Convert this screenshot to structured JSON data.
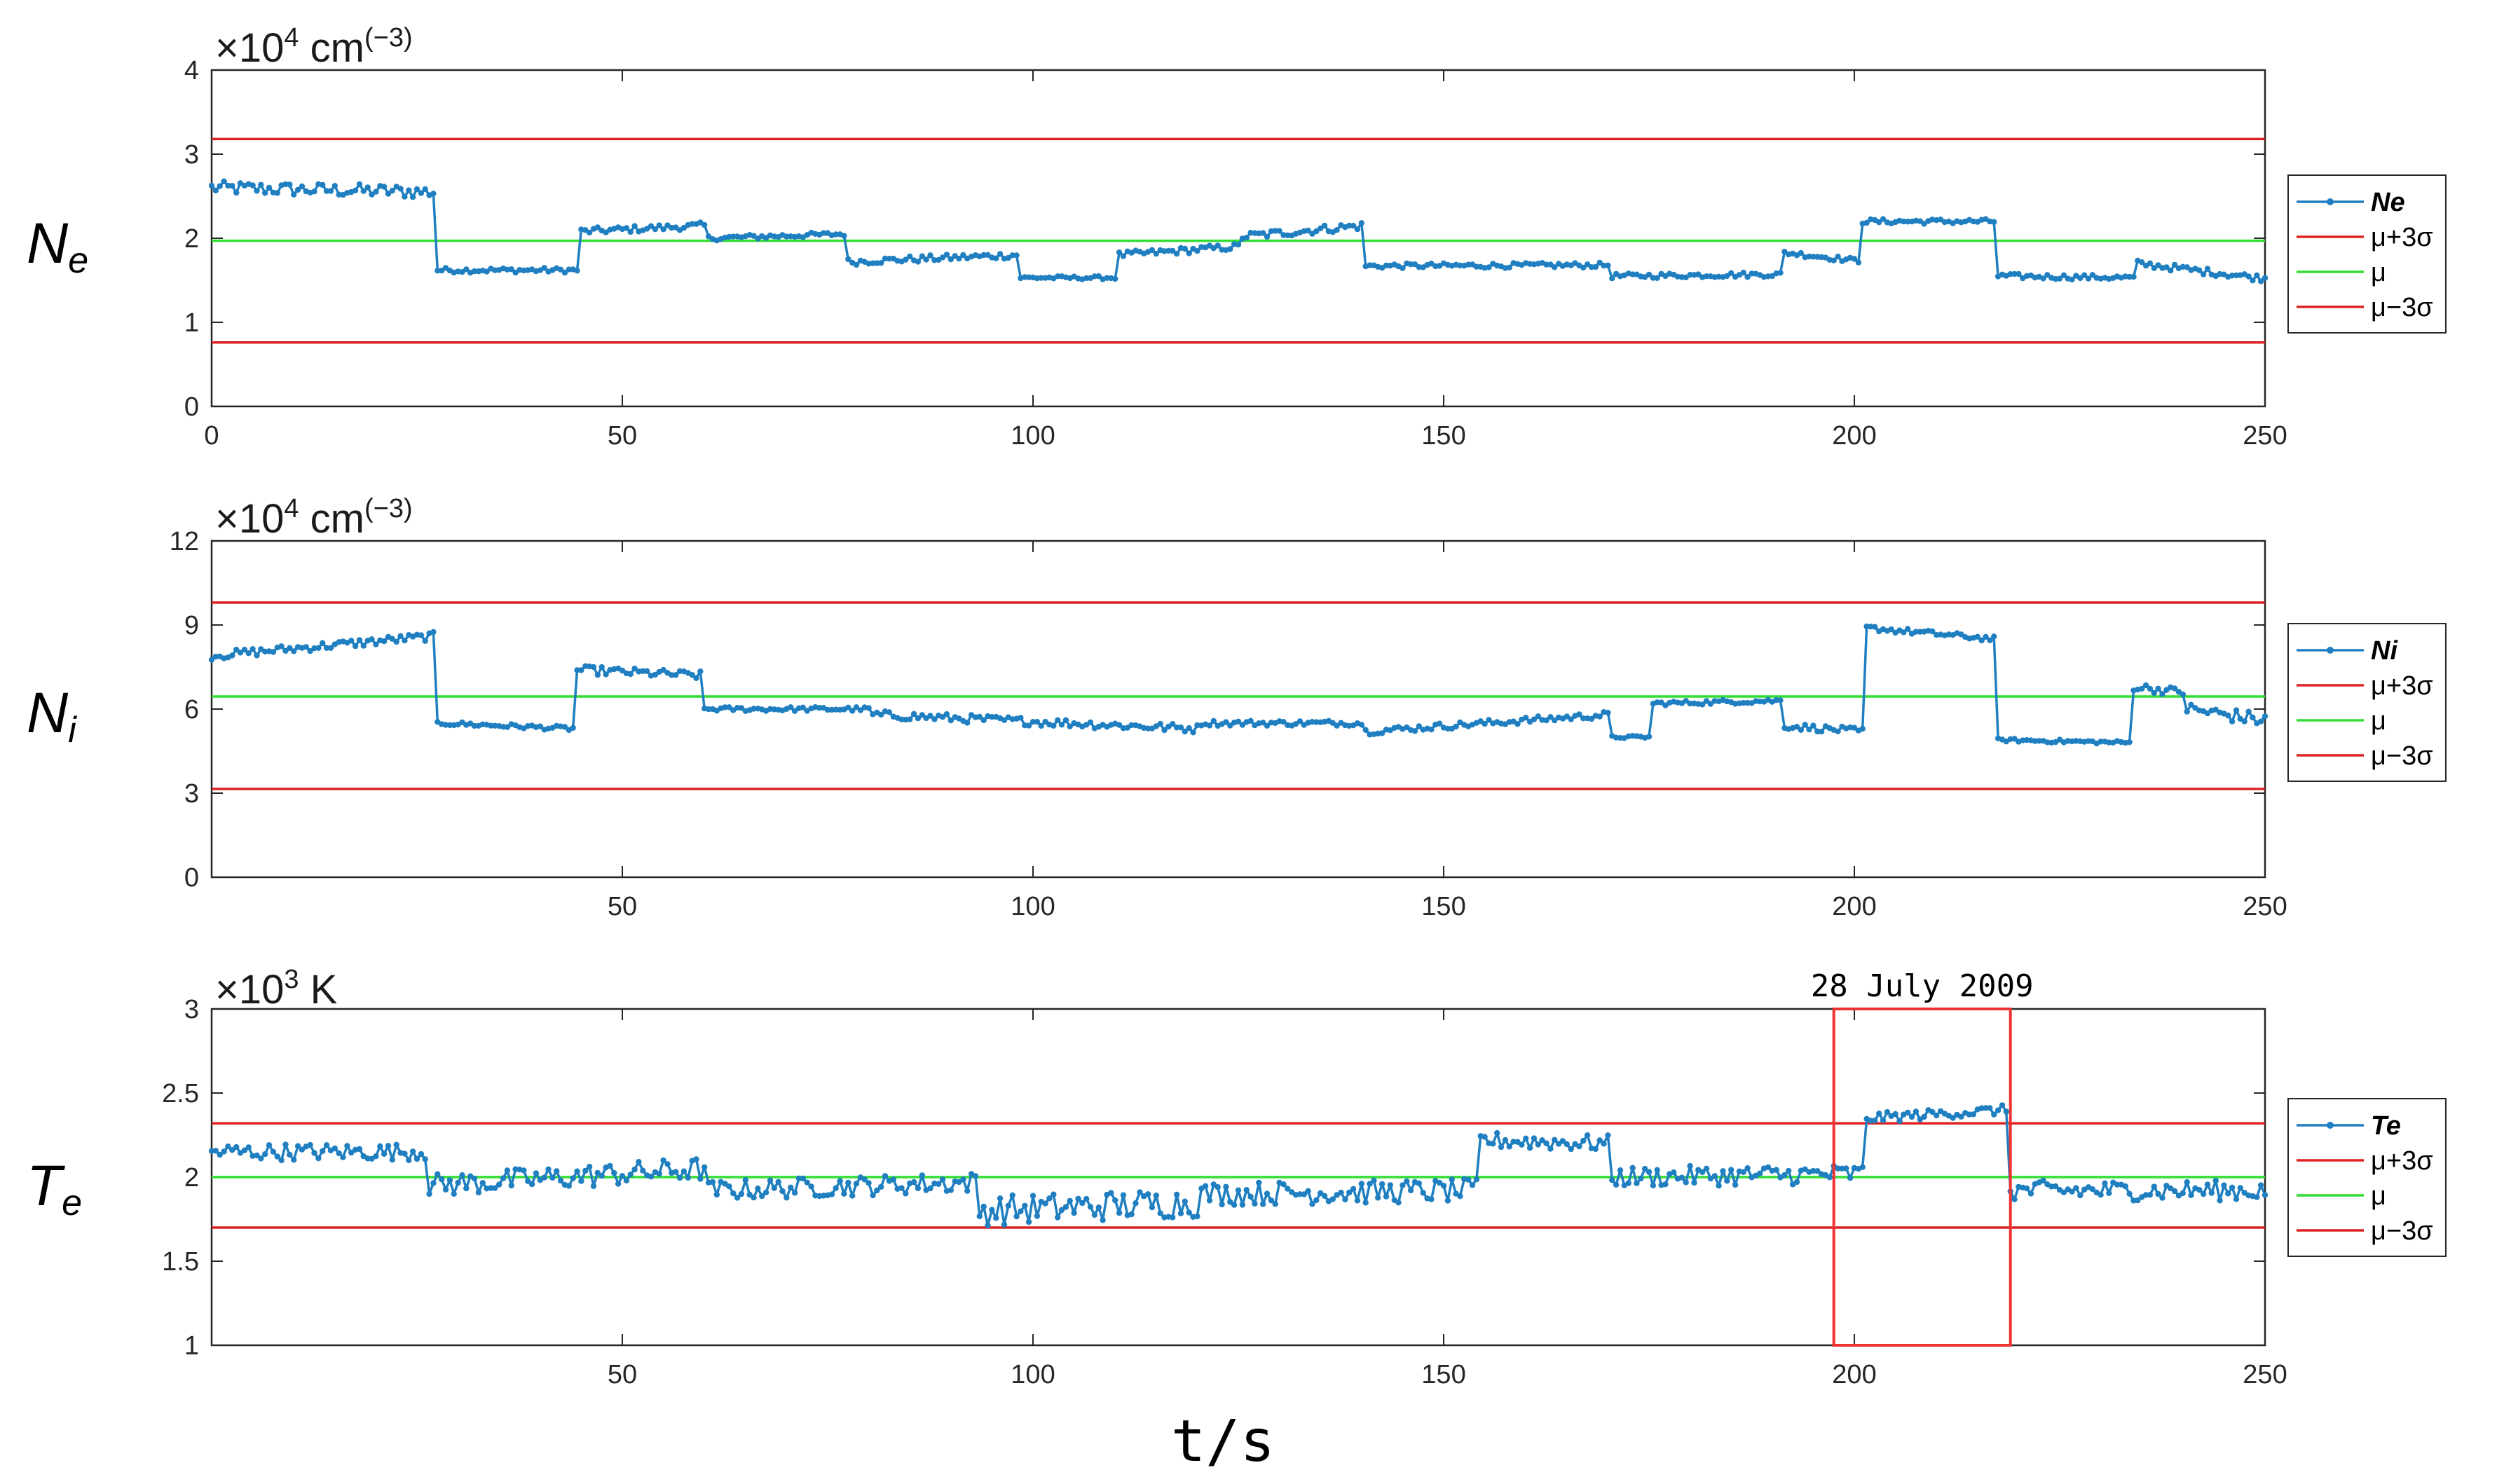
{
  "figure": {
    "xlabel": "t/s",
    "legend_mu_plus": "μ+3σ",
    "legend_mu": "μ",
    "legend_mu_minus": "μ−3σ"
  },
  "colors": {
    "series": "#1f7fc0",
    "mu_line": "#33dd33",
    "sigma_line": "#dd2222",
    "highlight": "#ee3333"
  },
  "chart_data": [
    {
      "type": "line",
      "ylabel": "N",
      "ylabel_sub": "e",
      "unit_prefix": "×10",
      "unit_exp": "4",
      "unit_tail": " cm",
      "unit_tail_exp": "(−3)",
      "legend_series": "Ne",
      "xlim": [
        0,
        250
      ],
      "ylim": [
        0,
        4
      ],
      "xticks": [
        0,
        50,
        100,
        150,
        200,
        250
      ],
      "xtick_labels": [
        "0",
        "50",
        "100",
        "150",
        "200",
        "250"
      ],
      "yticks": [
        0,
        1,
        2,
        3,
        4
      ],
      "ytick_labels": [
        "0",
        "1",
        "2",
        "3",
        "4"
      ],
      "mu": 1.97,
      "mu_plus_3sigma": 3.18,
      "mu_minus_3sigma": 0.76,
      "segments": [
        {
          "x0": 0,
          "x1": 27,
          "y0": 2.6,
          "y1": 2.55,
          "noise": 0.08
        },
        {
          "x0": 27.5,
          "x1": 44.5,
          "y0": 1.62,
          "y1": 1.62,
          "noise": 0.03
        },
        {
          "x0": 45,
          "x1": 60,
          "y0": 2.08,
          "y1": 2.15,
          "noise": 0.04
        },
        {
          "x0": 60.5,
          "x1": 77,
          "y0": 2.0,
          "y1": 2.05,
          "noise": 0.03
        },
        {
          "x0": 77.5,
          "x1": 98,
          "y0": 1.72,
          "y1": 1.8,
          "noise": 0.04
        },
        {
          "x0": 98.5,
          "x1": 110,
          "y0": 1.53,
          "y1": 1.53,
          "noise": 0.02
        },
        {
          "x0": 110.5,
          "x1": 125,
          "y0": 1.8,
          "y1": 1.9,
          "noise": 0.04
        },
        {
          "x0": 125.5,
          "x1": 140,
          "y0": 2.02,
          "y1": 2.15,
          "noise": 0.05
        },
        {
          "x0": 140.5,
          "x1": 170,
          "y0": 1.67,
          "y1": 1.68,
          "noise": 0.03
        },
        {
          "x0": 170.5,
          "x1": 191,
          "y0": 1.55,
          "y1": 1.57,
          "noise": 0.03
        },
        {
          "x0": 191.5,
          "x1": 200.5,
          "y0": 1.83,
          "y1": 1.73,
          "noise": 0.03
        },
        {
          "x0": 201,
          "x1": 217,
          "y0": 2.2,
          "y1": 2.2,
          "noise": 0.03
        },
        {
          "x0": 217.5,
          "x1": 234,
          "y0": 1.55,
          "y1": 1.53,
          "noise": 0.03
        },
        {
          "x0": 234.5,
          "x1": 250,
          "y0": 1.7,
          "y1": 1.52,
          "noise": 0.04
        }
      ]
    },
    {
      "type": "line",
      "ylabel": "N",
      "ylabel_sub": "i",
      "unit_prefix": "×10",
      "unit_exp": "4",
      "unit_tail": " cm",
      "unit_tail_exp": "(−3)",
      "legend_series": "Ni",
      "xlim": [
        0,
        250
      ],
      "ylim": [
        0,
        12
      ],
      "xticks": [
        50,
        100,
        150,
        200,
        250
      ],
      "xtick_labels": [
        "50",
        "100",
        "150",
        "200",
        "250"
      ],
      "yticks": [
        0,
        3,
        6,
        9,
        12
      ],
      "ytick_labels": [
        "0",
        "3",
        "6",
        "9",
        "12"
      ],
      "mu": 6.45,
      "mu_plus_3sigma": 9.8,
      "mu_minus_3sigma": 3.15,
      "segments": [
        {
          "x0": 0,
          "x1": 27,
          "y0": 7.9,
          "y1": 8.6,
          "noise": 0.15
        },
        {
          "x0": 27.5,
          "x1": 44,
          "y0": 5.5,
          "y1": 5.3,
          "noise": 0.08
        },
        {
          "x0": 44.5,
          "x1": 59.5,
          "y0": 7.4,
          "y1": 7.2,
          "noise": 0.15
        },
        {
          "x0": 60,
          "x1": 80,
          "y0": 6.0,
          "y1": 6.0,
          "noise": 0.08
        },
        {
          "x0": 80.5,
          "x1": 120,
          "y0": 5.8,
          "y1": 5.3,
          "noise": 0.15
        },
        {
          "x0": 120.5,
          "x1": 140,
          "y0": 5.5,
          "y1": 5.5,
          "noise": 0.1
        },
        {
          "x0": 140.5,
          "x1": 170,
          "y0": 5.2,
          "y1": 5.8,
          "noise": 0.12
        },
        {
          "x0": 170.5,
          "x1": 175,
          "y0": 5.0,
          "y1": 5.0,
          "noise": 0.05
        },
        {
          "x0": 175.5,
          "x1": 191,
          "y0": 6.2,
          "y1": 6.3,
          "noise": 0.08
        },
        {
          "x0": 191.5,
          "x1": 201,
          "y0": 5.4,
          "y1": 5.2,
          "noise": 0.12
        },
        {
          "x0": 201.5,
          "x1": 217,
          "y0": 8.9,
          "y1": 8.5,
          "noise": 0.1
        },
        {
          "x0": 217.5,
          "x1": 233.5,
          "y0": 4.9,
          "y1": 4.8,
          "noise": 0.06
        },
        {
          "x0": 234,
          "x1": 240,
          "y0": 6.8,
          "y1": 6.6,
          "noise": 0.15
        },
        {
          "x0": 240.5,
          "x1": 250,
          "y0": 6.0,
          "y1": 5.6,
          "noise": 0.25
        }
      ]
    },
    {
      "type": "line",
      "ylabel": "T",
      "ylabel_sub": "e",
      "unit_prefix": "×10",
      "unit_exp": "3",
      "unit_tail": " K",
      "unit_tail_exp": "",
      "legend_series": "Te",
      "annotation": "28 July 2009",
      "highlight_x": [
        197.5,
        219
      ],
      "xlim": [
        0,
        250
      ],
      "ylim": [
        1,
        3
      ],
      "xticks": [
        50,
        100,
        150,
        200,
        250
      ],
      "xtick_labels": [
        "50",
        "100",
        "150",
        "200",
        "250"
      ],
      "yticks": [
        1,
        1.5,
        2,
        2.5,
        3
      ],
      "ytick_labels": [
        "1",
        "1.5",
        "2",
        "2.5",
        "3"
      ],
      "mu": 2.0,
      "mu_plus_3sigma": 2.32,
      "mu_minus_3sigma": 1.7,
      "segments": [
        {
          "x0": 0,
          "x1": 26,
          "y0": 2.15,
          "y1": 2.15,
          "noise": 0.05
        },
        {
          "x0": 26.5,
          "x1": 60,
          "y0": 1.95,
          "y1": 2.05,
          "noise": 0.07
        },
        {
          "x0": 60.5,
          "x1": 93,
          "y0": 1.92,
          "y1": 1.97,
          "noise": 0.06
        },
        {
          "x0": 93.5,
          "x1": 120,
          "y0": 1.8,
          "y1": 1.85,
          "noise": 0.09
        },
        {
          "x0": 120.5,
          "x1": 154,
          "y0": 1.9,
          "y1": 1.92,
          "noise": 0.07
        },
        {
          "x0": 154.5,
          "x1": 170,
          "y0": 2.22,
          "y1": 2.2,
          "noise": 0.05
        },
        {
          "x0": 170.5,
          "x1": 201,
          "y0": 2.0,
          "y1": 2.02,
          "noise": 0.06
        },
        {
          "x0": 201.5,
          "x1": 218.5,
          "y0": 2.35,
          "y1": 2.4,
          "noise": 0.03
        },
        {
          "x0": 219,
          "x1": 250,
          "y0": 1.92,
          "y1": 1.92,
          "noise": 0.06
        }
      ]
    }
  ]
}
